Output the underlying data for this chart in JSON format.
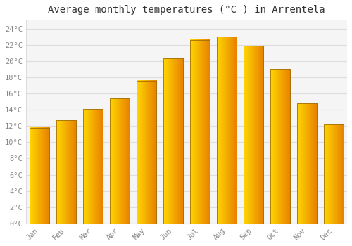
{
  "title": "Average monthly temperatures (°C ) in Arrentela",
  "categories": [
    "Jan",
    "Feb",
    "Mar",
    "Apr",
    "May",
    "Jun",
    "Jul",
    "Aug",
    "Sep",
    "Oct",
    "Nov",
    "Dec"
  ],
  "values": [
    11.8,
    12.7,
    14.1,
    15.4,
    17.6,
    20.3,
    22.6,
    23.0,
    21.9,
    19.0,
    14.8,
    12.2
  ],
  "bar_color_main": "#FFA500",
  "bar_color_left": "#FFD700",
  "bar_color_right": "#E87F00",
  "bar_edge_color": "#A0700A",
  "background_color": "#FFFFFF",
  "plot_bg_color": "#F5F5F5",
  "grid_color": "#DDDDDD",
  "tick_label_color": "#888888",
  "title_color": "#333333",
  "ylim": [
    0,
    25
  ],
  "yticks": [
    0,
    2,
    4,
    6,
    8,
    10,
    12,
    14,
    16,
    18,
    20,
    22,
    24
  ],
  "ytick_labels": [
    "0°C",
    "2°C",
    "4°C",
    "6°C",
    "8°C",
    "10°C",
    "12°C",
    "14°C",
    "16°C",
    "18°C",
    "20°C",
    "22°C",
    "24°C"
  ],
  "title_fontsize": 10,
  "tick_fontsize": 7.5,
  "font_family": "monospace",
  "bar_width": 0.75
}
